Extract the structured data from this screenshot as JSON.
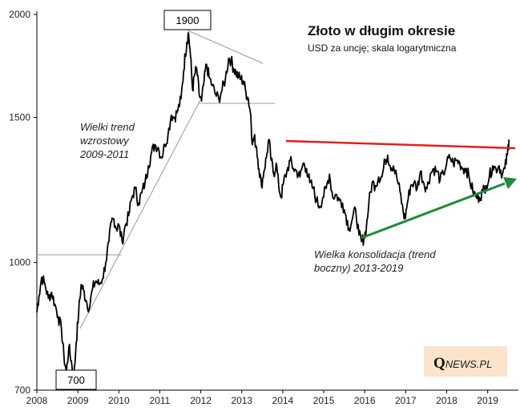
{
  "chart_data": {
    "type": "line",
    "title": "Złoto w długim okresie",
    "subtitle": "USD za uncję; skala logarytmiczna",
    "y_scale": "log",
    "ylim": [
      700,
      2000
    ],
    "xlim": [
      2008,
      2019.75
    ],
    "y_ticks": [
      "2000",
      "1500",
      "1000",
      "700"
    ],
    "y_tick_values": [
      2000,
      1500,
      1000,
      700
    ],
    "x_ticks": [
      "2008",
      "2009",
      "2010",
      "2011",
      "2012",
      "2013",
      "2014",
      "2015",
      "2016",
      "2017",
      "2018",
      "2019"
    ],
    "x_tick_values": [
      2008,
      2009,
      2010,
      2011,
      2012,
      2013,
      2014,
      2015,
      2016,
      2017,
      2018,
      2019
    ],
    "grid": false,
    "series": [
      {
        "x": [
          2008.0,
          2008.05,
          2008.12,
          2008.2,
          2008.28,
          2008.36,
          2008.44,
          2008.52,
          2008.6,
          2008.66,
          2008.72,
          2008.78,
          2008.84,
          2008.9,
          2008.96,
          2009.02,
          2009.08,
          2009.14,
          2009.2,
          2009.28,
          2009.36,
          2009.44,
          2009.52,
          2009.6,
          2009.68,
          2009.76,
          2009.82,
          2009.88,
          2009.94,
          2010.0,
          2010.08,
          2010.16,
          2010.24,
          2010.32,
          2010.4,
          2010.48,
          2010.56,
          2010.64,
          2010.72,
          2010.8,
          2010.88,
          2010.96,
          2011.04,
          2011.12,
          2011.2,
          2011.28,
          2011.36,
          2011.44,
          2011.52,
          2011.58,
          2011.62,
          2011.66,
          2011.7,
          2011.75,
          2011.8,
          2011.85,
          2011.9,
          2011.96,
          2012.02,
          2012.08,
          2012.14,
          2012.2,
          2012.28,
          2012.36,
          2012.44,
          2012.52,
          2012.6,
          2012.68,
          2012.74,
          2012.8,
          2012.86,
          2012.92,
          2012.98,
          2013.04,
          2013.1,
          2013.16,
          2013.22,
          2013.26,
          2013.3,
          2013.36,
          2013.42,
          2013.48,
          2013.54,
          2013.6,
          2013.66,
          2013.72,
          2013.78,
          2013.84,
          2013.9,
          2013.96,
          2014.02,
          2014.1,
          2014.18,
          2014.26,
          2014.34,
          2014.42,
          2014.5,
          2014.58,
          2014.66,
          2014.74,
          2014.82,
          2014.9,
          2014.98,
          2015.06,
          2015.14,
          2015.22,
          2015.3,
          2015.38,
          2015.46,
          2015.54,
          2015.62,
          2015.7,
          2015.78,
          2015.86,
          2015.92,
          2015.98,
          2016.04,
          2016.1,
          2016.18,
          2016.26,
          2016.34,
          2016.42,
          2016.5,
          2016.56,
          2016.62,
          2016.7,
          2016.78,
          2016.86,
          2016.94,
          2016.98,
          2017.04,
          2017.12,
          2017.2,
          2017.28,
          2017.36,
          2017.44,
          2017.52,
          2017.6,
          2017.68,
          2017.76,
          2017.84,
          2017.92,
          2018.0,
          2018.08,
          2018.16,
          2018.24,
          2018.32,
          2018.4,
          2018.48,
          2018.56,
          2018.64,
          2018.72,
          2018.8,
          2018.88,
          2018.96,
          2019.04,
          2019.12,
          2019.2,
          2019.28,
          2019.36,
          2019.42,
          2019.48,
          2019.52
        ],
        "y": [
          870,
          910,
          960,
          940,
          905,
          920,
          890,
          860,
          830,
          770,
          735,
          790,
          760,
          720,
          800,
          870,
          940,
          925,
          900,
          880,
          930,
          950,
          940,
          955,
          1000,
          1060,
          1120,
          1130,
          1100,
          1110,
          1060,
          1110,
          1140,
          1200,
          1230,
          1180,
          1215,
          1250,
          1310,
          1360,
          1390,
          1380,
          1340,
          1390,
          1430,
          1510,
          1500,
          1530,
          1580,
          1700,
          1790,
          1850,
          1900,
          1780,
          1620,
          1690,
          1720,
          1600,
          1570,
          1660,
          1740,
          1680,
          1640,
          1600,
          1580,
          1620,
          1670,
          1770,
          1760,
          1720,
          1700,
          1680,
          1670,
          1660,
          1610,
          1580,
          1510,
          1390,
          1420,
          1380,
          1300,
          1240,
          1290,
          1340,
          1410,
          1330,
          1280,
          1320,
          1240,
          1200,
          1250,
          1290,
          1330,
          1300,
          1290,
          1270,
          1320,
          1300,
          1250,
          1230,
          1190,
          1170,
          1200,
          1230,
          1280,
          1200,
          1210,
          1190,
          1180,
          1140,
          1100,
          1130,
          1160,
          1080,
          1060,
          1070,
          1100,
          1180,
          1250,
          1240,
          1270,
          1270,
          1330,
          1350,
          1310,
          1310,
          1270,
          1220,
          1150,
          1130,
          1180,
          1240,
          1250,
          1230,
          1290,
          1250,
          1230,
          1280,
          1300,
          1290,
          1260,
          1280,
          1320,
          1340,
          1320,
          1330,
          1320,
          1300,
          1300,
          1260,
          1220,
          1200,
          1200,
          1220,
          1240,
          1270,
          1310,
          1300,
          1310,
          1280,
          1300,
          1350,
          1410
        ]
      }
    ],
    "annotations": {
      "peak_label": "1900",
      "low_label": "700",
      "trend_up": [
        "Wielki trend",
        "wzrostowy",
        "2009-2011"
      ],
      "consolidation": [
        "Wielka konsolidacja (trend",
        "boczny) 2013-2019"
      ]
    },
    "colors": {
      "price_line": "#000000",
      "resistance_line": "#e02020",
      "support_arrow": "#1f8a3a",
      "guide_lines": "#999999",
      "logo_bg": "#fbe3cc"
    }
  },
  "logo": {
    "q": "Q",
    "rest": "NEWS.PL"
  }
}
